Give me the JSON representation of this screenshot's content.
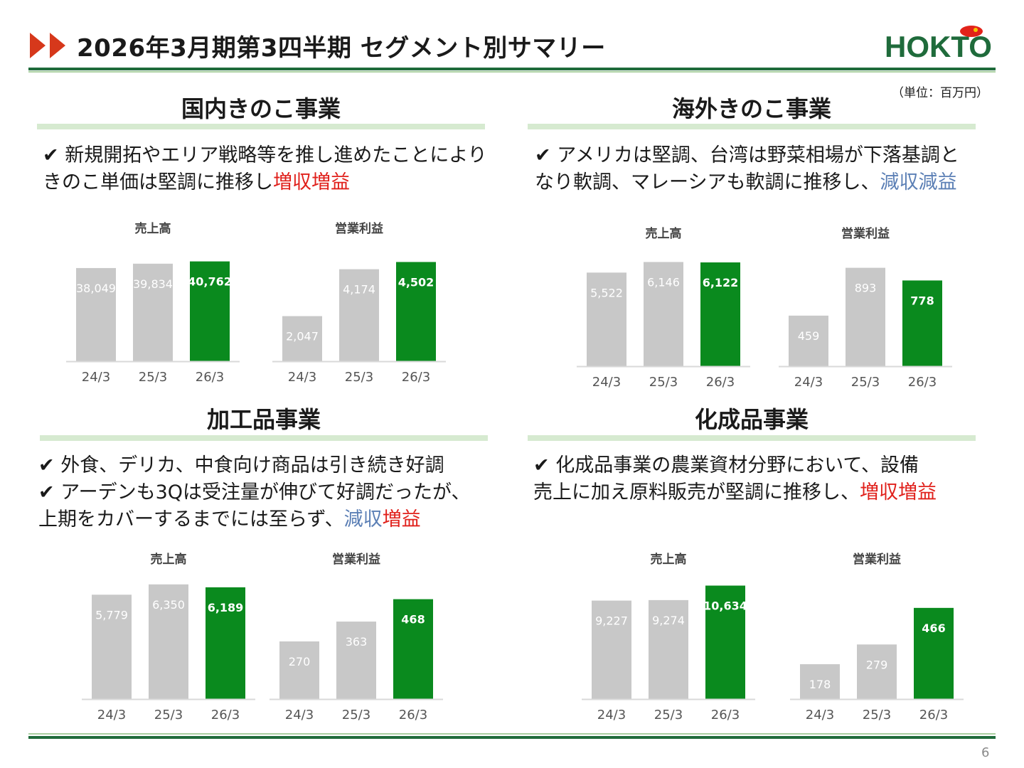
{
  "header": {
    "title": "2026年3月期第3四半期 セグメント別サマリー",
    "logo_text": "HOKTO",
    "unit": "（単位：百万円）"
  },
  "colors": {
    "accent_green": "#0a8a1e",
    "bar_gray": "#c8c8c8",
    "arrow_red": "#d6381b",
    "increase_red": "#e0201b",
    "decrease_blue": "#5b7fb5"
  },
  "sections": {
    "domestic": {
      "title": "国内きのこ事業",
      "line1": "✔ 新規開拓やエリア戦略等を推し進めたことにより",
      "line2_pre": "きのこ単価は堅調に推移し",
      "hl1": "増収増益"
    },
    "overseas": {
      "title": "海外きのこ事業",
      "line1": "✔ アメリカは堅調、台湾は野菜相場が下落基調と",
      "line2_pre": "なり軟調、マレーシアも軟調に推移し、",
      "hl1": "減収減益"
    },
    "processed": {
      "title": "加工品事業",
      "line1": "✔ 外食、デリカ、中食向け商品は引き続き好調",
      "line2": "✔ アーデンも3Qは受注量が伸びて好調だったが、",
      "line3_pre": "上期をカバーするまでには至らず、",
      "hl1": "減収",
      "hl2": "増益"
    },
    "chemical": {
      "title": "化成品事業",
      "line1": "✔ 化成品事業の農業資材分野において、設備",
      "line2_pre": "売上に加え原料販売が堅調に推移し、",
      "hl1": "増収増益"
    }
  },
  "chart_data": [
    {
      "type": "bar",
      "title": "売上高",
      "segment": "国内きのこ事業",
      "categories": [
        "24/3",
        "25/3",
        "26/3"
      ],
      "values": [
        38049,
        39834,
        40762
      ],
      "labels": [
        "38,049",
        "39,834",
        "40,762"
      ],
      "ylim": [
        0,
        45000
      ]
    },
    {
      "type": "bar",
      "title": "営業利益",
      "segment": "国内きのこ事業",
      "categories": [
        "24/3",
        "25/3",
        "26/3"
      ],
      "values": [
        2047,
        4174,
        4502
      ],
      "labels": [
        "2,047",
        "4,174",
        "4,502"
      ],
      "ylim": [
        0,
        5000
      ]
    },
    {
      "type": "bar",
      "title": "売上高",
      "segment": "海外きのこ事業",
      "categories": [
        "24/3",
        "25/3",
        "26/3"
      ],
      "values": [
        5522,
        6146,
        6122
      ],
      "labels": [
        "5,522",
        "6,146",
        "6,122"
      ],
      "ylim": [
        0,
        6500
      ]
    },
    {
      "type": "bar",
      "title": "営業利益",
      "segment": "海外きのこ事業",
      "categories": [
        "24/3",
        "25/3",
        "26/3"
      ],
      "values": [
        459,
        893,
        778
      ],
      "labels": [
        "459",
        "893",
        "778"
      ],
      "ylim": [
        0,
        1000
      ]
    },
    {
      "type": "bar",
      "title": "売上高",
      "segment": "加工品事業",
      "categories": [
        "24/3",
        "25/3",
        "26/3"
      ],
      "values": [
        5779,
        6350,
        6189
      ],
      "labels": [
        "5,779",
        "6,350",
        "6,189"
      ],
      "ylim": [
        0,
        6500
      ]
    },
    {
      "type": "bar",
      "title": "営業利益",
      "segment": "加工品事業",
      "categories": [
        "24/3",
        "25/3",
        "26/3"
      ],
      "values": [
        270,
        363,
        468
      ],
      "labels": [
        "270",
        "363",
        "468"
      ],
      "ylim": [
        0,
        550
      ]
    },
    {
      "type": "bar",
      "title": "売上高",
      "segment": "化成品事業",
      "categories": [
        "24/3",
        "25/3",
        "26/3"
      ],
      "values": [
        9227,
        9274,
        10634
      ],
      "labels": [
        "9,227",
        "9,274",
        "10,634"
      ],
      "ylim": [
        0,
        11000
      ]
    },
    {
      "type": "bar",
      "title": "営業利益",
      "segment": "化成品事業",
      "categories": [
        "24/3",
        "25/3",
        "26/3"
      ],
      "values": [
        178,
        279,
        466
      ],
      "labels": [
        "178",
        "279",
        "466"
      ],
      "ylim": [
        0,
        600
      ]
    }
  ],
  "footer": {
    "page": "6"
  }
}
